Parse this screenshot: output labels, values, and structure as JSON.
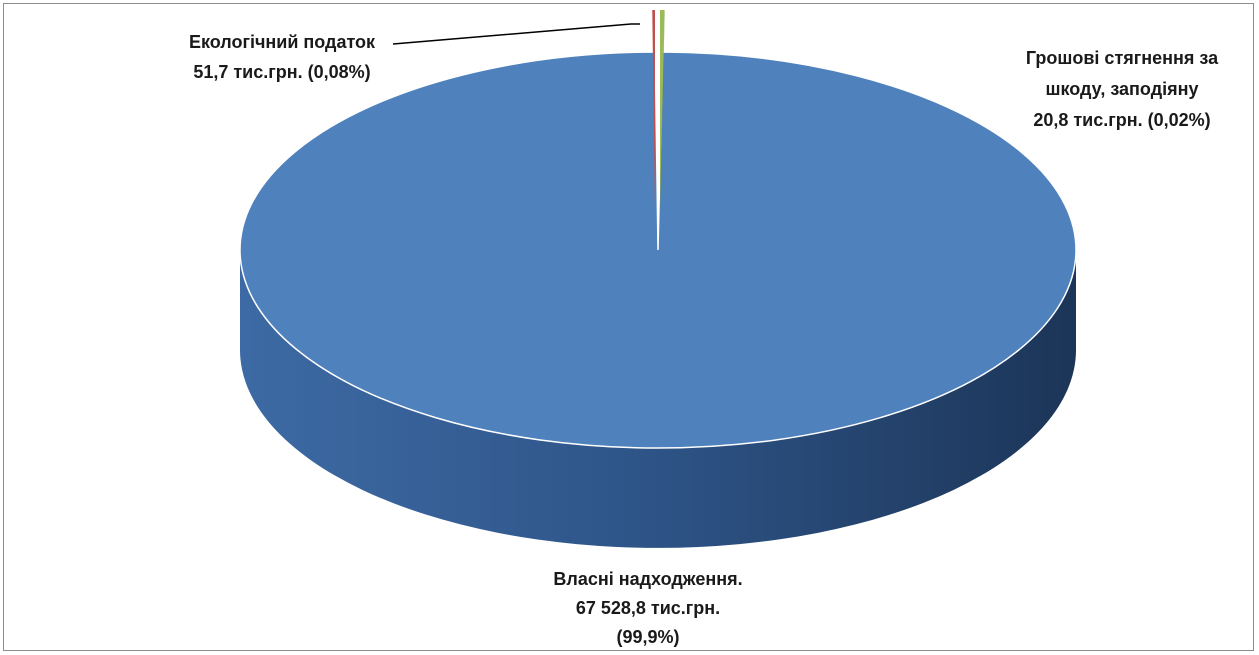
{
  "chart_data": {
    "type": "pie",
    "title": "",
    "three_d": true,
    "legend": "none",
    "slices": [
      {
        "name": "Власні надходження.",
        "value": 67528.8,
        "percent": 99.9,
        "label_lines": [
          "Власні надходження.",
          "67 528,8 тис.грн.",
          "(99,9%)"
        ],
        "color": "#4f81bd"
      },
      {
        "name": "Екологічний податок",
        "value": 51.7,
        "percent": 0.08,
        "label_lines": [
          "Екологічний податок",
          "51,7 тис.грн. (0,08%)"
        ],
        "color": "#9bbb59"
      },
      {
        "name": "Грошові стягнення за шкоду, заподіяну",
        "value": 20.8,
        "percent": 0.02,
        "label_lines": [
          "Грошові стягнення за",
          "шкоду, заподіяну",
          "20,8 тис.грн. (0,02%)"
        ],
        "color": "#c0504d"
      }
    ]
  }
}
